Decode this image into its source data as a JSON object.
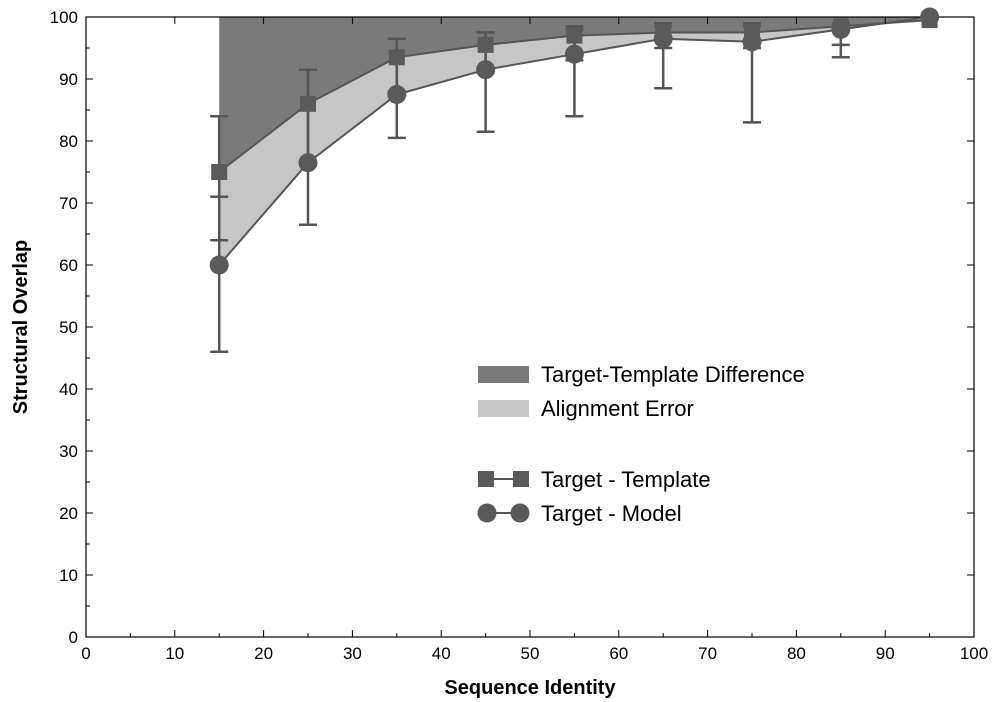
{
  "chart_data": {
    "type": "line",
    "title": "",
    "xlabel": "Sequence Identity",
    "ylabel": "Structural Overlap",
    "xlim": [
      0,
      100
    ],
    "ylim": [
      0,
      100
    ],
    "xticks": [
      0,
      10,
      20,
      30,
      40,
      50,
      60,
      70,
      80,
      90,
      100
    ],
    "yticks": [
      0,
      10,
      20,
      30,
      40,
      50,
      60,
      70,
      80,
      90,
      100
    ],
    "grid": false,
    "x": [
      15,
      25,
      35,
      45,
      55,
      65,
      75,
      85,
      95
    ],
    "series": [
      {
        "name": "Target - Template",
        "marker": "square",
        "values": [
          75,
          86,
          93.5,
          95.5,
          97,
          97.5,
          97.5,
          98.5,
          99.5
        ],
        "err_low": [
          64,
          76,
          88,
          91,
          93,
          95,
          95,
          95.5,
          99.5
        ],
        "err_high": [
          84,
          91.5,
          96.5,
          97.5,
          98.5,
          99,
          99,
          99,
          99.5
        ]
      },
      {
        "name": "Target - Model",
        "marker": "circle",
        "values": [
          60,
          76.5,
          87.5,
          91.5,
          94,
          96.5,
          96,
          98,
          100
        ],
        "err_low": [
          46,
          66.5,
          80.5,
          81.5,
          84,
          88.5,
          83,
          93.5,
          100
        ],
        "err_high": [
          71,
          91.5,
          96.5,
          97.5,
          98,
          98.5,
          98.5,
          98.5,
          100
        ]
      }
    ],
    "areas": [
      {
        "name": "Target-Template Difference",
        "color": "#7a7a7a"
      },
      {
        "name": "Alignment Error",
        "color": "#c6c6c6"
      }
    ],
    "colors": {
      "marker": "#5a5a5a",
      "line": "#555555",
      "dark_fill": "#7a7a7a",
      "light_fill": "#c6c6c6"
    },
    "legend_position": "center-right"
  }
}
